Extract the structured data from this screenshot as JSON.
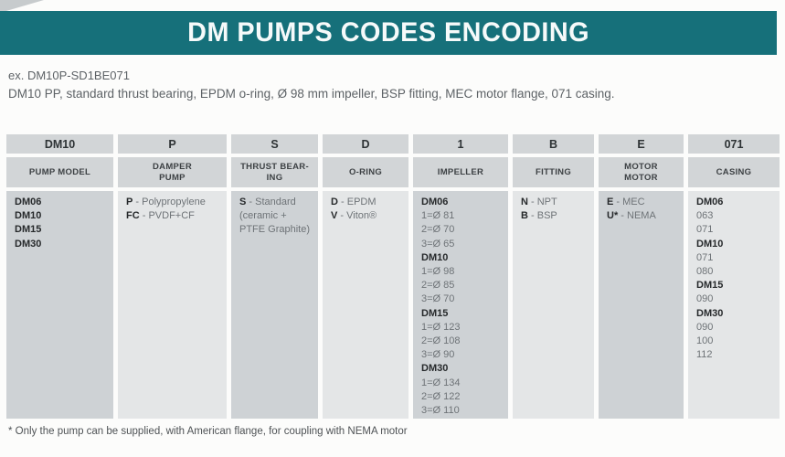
{
  "header": {
    "title": "DM PUMPS CODES ENCODING"
  },
  "example": {
    "code_line": "ex. DM10P-SD1BE071",
    "description": "DM10 PP, standard thrust bearing, EPDM o-ring, Ø 98 mm impeller, BSP fitting, MEC motor flange, 071 casing."
  },
  "footnote": "* Only the pump can be supplied, with American flange, for coupling with NEMA motor",
  "colors": {
    "accent_teal": "#16707a",
    "header_cell_gray": "#d2d5d7",
    "body_cell_dark": "#ced2d5",
    "body_cell_light": "#e4e6e7"
  },
  "table": {
    "columns": [
      {
        "code": "DM10",
        "name": "PUMP MODEL",
        "lines": [
          {
            "b": "DM06"
          },
          {
            "b": "DM10"
          },
          {
            "b": "DM15"
          },
          {
            "b": "DM30"
          }
        ]
      },
      {
        "code": "P",
        "name": "DAMPER\nPUMP",
        "lines": [
          {
            "b": "P",
            "t": "- Polypropylene"
          },
          {
            "b": "FC",
            "t": "- PVDF+CF"
          }
        ]
      },
      {
        "code": "S",
        "name": "THRUST BEAR-\nING",
        "lines": [
          {
            "b": "S",
            "t": "- Standard"
          },
          {
            "t": "(ceramic +"
          },
          {
            "t": "PTFE Graphite)"
          }
        ]
      },
      {
        "code": "D",
        "name": "O-RING",
        "lines": [
          {
            "b": "D",
            "t": "- EPDM"
          },
          {
            "b": "V",
            "t": "- Viton®"
          }
        ]
      },
      {
        "code": "1",
        "name": "IMPELLER",
        "lines": [
          {
            "b": "DM06"
          },
          {
            "t": "1=Ø 81"
          },
          {
            "t": "2=Ø 70"
          },
          {
            "t": "3=Ø 65"
          },
          {
            "b": "DM10"
          },
          {
            "t": "1=Ø 98"
          },
          {
            "t": "2=Ø 85"
          },
          {
            "t": "3=Ø 70"
          },
          {
            "b": "DM15"
          },
          {
            "t": "1=Ø 123"
          },
          {
            "t": "2=Ø 108"
          },
          {
            "t": "3=Ø 90"
          },
          {
            "b": "DM30"
          },
          {
            "t": "1=Ø 134"
          },
          {
            "t": "2=Ø 122"
          },
          {
            "t": "3=Ø 110"
          }
        ]
      },
      {
        "code": "B",
        "name": "FITTING",
        "lines": [
          {
            "b": "N",
            "t": "- NPT"
          },
          {
            "b": "B",
            "t": "- BSP"
          }
        ]
      },
      {
        "code": "E",
        "name": "MOTOR\nMOTOR",
        "lines": [
          {
            "b": "E",
            "t": "- MEC"
          },
          {
            "b": "U*",
            "t": "- NEMA"
          }
        ]
      },
      {
        "code": "071",
        "name": "CASING",
        "lines": [
          {
            "b": "DM06"
          },
          {
            "t": "063"
          },
          {
            "t": "071"
          },
          {
            "b": "DM10"
          },
          {
            "t": "071"
          },
          {
            "t": "080"
          },
          {
            "b": "DM15"
          },
          {
            "t": "090"
          },
          {
            "b": "DM30"
          },
          {
            "t": "090"
          },
          {
            "t": "100"
          },
          {
            "t": "112"
          }
        ]
      }
    ]
  }
}
